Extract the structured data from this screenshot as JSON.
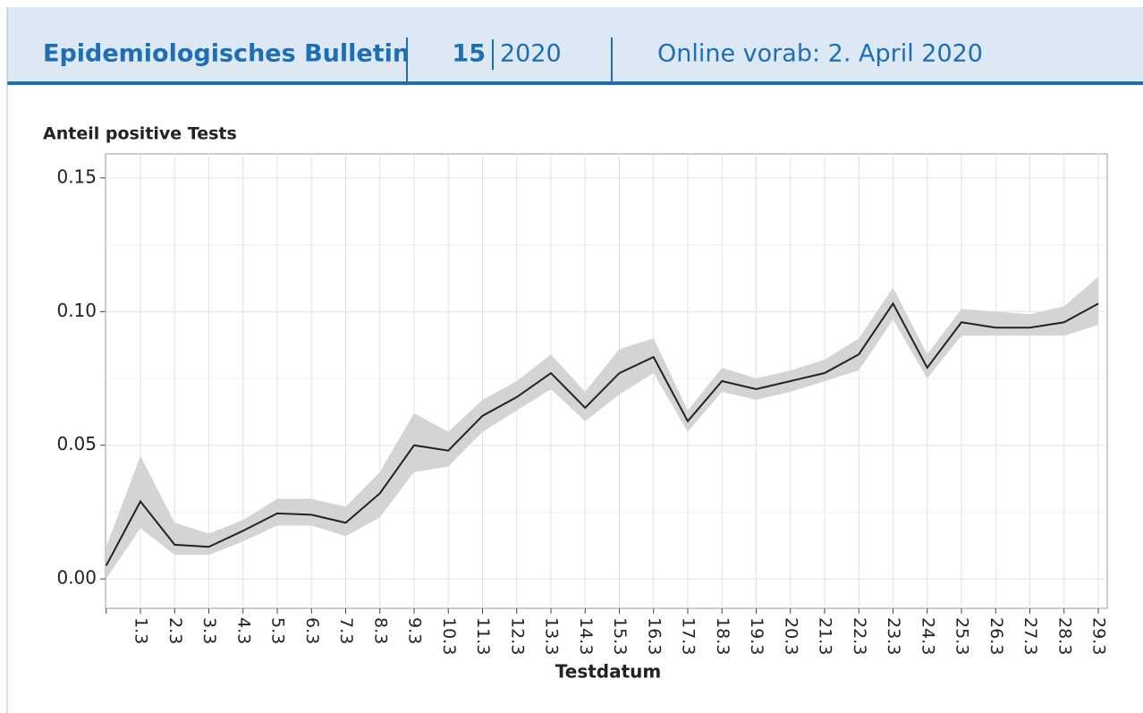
{
  "header": {
    "title": "Epidemiologisches Bulletin",
    "issue": "15",
    "year": "2020",
    "date": "Online vorab: 2. April 2020"
  },
  "chart_data": {
    "type": "line",
    "ylabel": "Anteil positive Tests",
    "xlabel": "Testdatum",
    "categories": [
      null,
      "1.3",
      "2.3",
      "3.3",
      "4.3",
      "5.3",
      "6.3",
      "7.3",
      "8.3",
      "9.3",
      "10.3",
      "11.3",
      "12.3",
      "13.3",
      "14.3",
      "15.3",
      "16.3",
      "17.3",
      "18.3",
      "19.3",
      "20.3",
      "21.3",
      "22.3",
      "23.3",
      "24.3",
      "25.3",
      "26.3",
      "27.3",
      "28.3",
      "29.3"
    ],
    "series": [
      {
        "color": "#222222",
        "band_color": "#d4d4d4",
        "values": [
          0.005,
          0.029,
          0.0128,
          0.012,
          0.018,
          0.0245,
          0.024,
          0.021,
          0.032,
          0.05,
          0.048,
          0.061,
          0.068,
          0.077,
          0.064,
          0.077,
          0.083,
          0.059,
          0.074,
          0.071,
          0.074,
          0.077,
          0.084,
          0.103,
          0.079,
          0.096,
          0.094,
          0.094,
          0.096,
          0.103
        ],
        "lower": [
          0.0,
          0.019,
          0.009,
          0.009,
          0.014,
          0.02,
          0.02,
          0.016,
          0.023,
          0.04,
          0.042,
          0.055,
          0.063,
          0.071,
          0.059,
          0.069,
          0.077,
          0.055,
          0.07,
          0.067,
          0.07,
          0.074,
          0.078,
          0.097,
          0.075,
          0.091,
          0.091,
          0.091,
          0.091,
          0.095
        ],
        "upper": [
          0.012,
          0.046,
          0.021,
          0.017,
          0.022,
          0.03,
          0.03,
          0.027,
          0.04,
          0.062,
          0.055,
          0.067,
          0.074,
          0.084,
          0.07,
          0.086,
          0.09,
          0.063,
          0.079,
          0.075,
          0.078,
          0.082,
          0.09,
          0.109,
          0.084,
          0.101,
          0.1,
          0.099,
          0.102,
          0.113
        ]
      }
    ],
    "ylim": [
      -0.011,
      0.159
    ],
    "yticks": [
      {
        "value": 0,
        "label": "0.00"
      },
      {
        "value": 0.05,
        "label": "0.05"
      },
      {
        "value": 0.1,
        "label": "0.10"
      },
      0.15
    ],
    "minor_yticks": [
      0.025,
      0.075,
      0.125
    ],
    "grid": true
  }
}
